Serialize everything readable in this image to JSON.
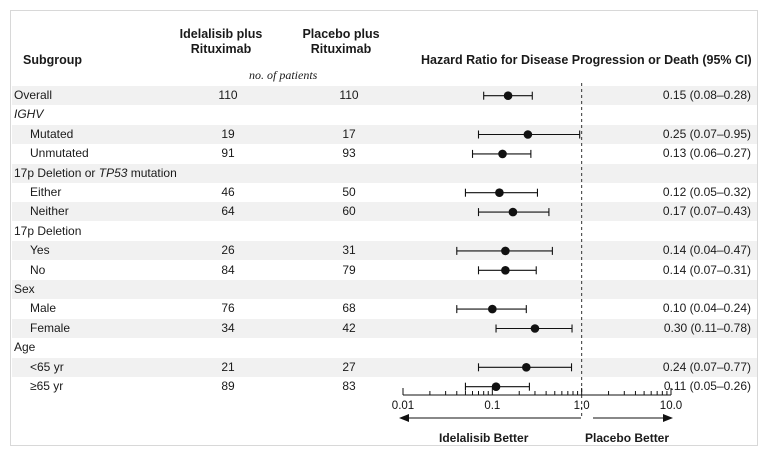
{
  "headers": {
    "subgroup": "Subgroup",
    "arm1_line1": "Idelalisib plus",
    "arm1_line2": "Rituximab",
    "arm2_line1": "Placebo plus",
    "arm2_line2": "Rituximab",
    "hr": "Hazard Ratio for Disease Progression or Death (95% CI)",
    "no_patients": "no. of patients"
  },
  "axis": {
    "ticks": [
      "0.01",
      "0.1",
      "1.0",
      "10.0"
    ],
    "left_label": "Idelalisib Better",
    "right_label": "Placebo Better"
  },
  "chart_data": {
    "type": "forest",
    "x_scale": "log",
    "xlim": [
      0.01,
      10.0
    ],
    "reference_line": 1.0,
    "rows": [
      {
        "label": "Overall",
        "kind": "data",
        "indent": false,
        "arm1": "110",
        "arm2": "110",
        "hr": 0.15,
        "lo": 0.08,
        "hi": 0.28,
        "ci_text": "0.15 (0.08–0.28)"
      },
      {
        "label": "IGHV",
        "kind": "group",
        "italic": true
      },
      {
        "label": "Mutated",
        "kind": "data",
        "indent": true,
        "arm1": "19",
        "arm2": "17",
        "hr": 0.25,
        "lo": 0.07,
        "hi": 0.95,
        "ci_text": "0.25 (0.07–0.95)"
      },
      {
        "label": "Unmutated",
        "kind": "data",
        "indent": true,
        "arm1": "91",
        "arm2": "93",
        "hr": 0.13,
        "lo": 0.06,
        "hi": 0.27,
        "ci_text": "0.13 (0.06–0.27)"
      },
      {
        "label": "17p Deletion or ",
        "label_it": "TP53",
        "label_tail": " mutation",
        "kind": "group"
      },
      {
        "label": "Either",
        "kind": "data",
        "indent": true,
        "arm1": "46",
        "arm2": "50",
        "hr": 0.12,
        "lo": 0.05,
        "hi": 0.32,
        "ci_text": "0.12 (0.05–0.32)"
      },
      {
        "label": "Neither",
        "kind": "data",
        "indent": true,
        "arm1": "64",
        "arm2": "60",
        "hr": 0.17,
        "lo": 0.07,
        "hi": 0.43,
        "ci_text": "0.17 (0.07–0.43)"
      },
      {
        "label": "17p Deletion",
        "kind": "group"
      },
      {
        "label": "Yes",
        "kind": "data",
        "indent": true,
        "arm1": "26",
        "arm2": "31",
        "hr": 0.14,
        "lo": 0.04,
        "hi": 0.47,
        "ci_text": "0.14 (0.04–0.47)"
      },
      {
        "label": "No",
        "kind": "data",
        "indent": true,
        "arm1": "84",
        "arm2": "79",
        "hr": 0.14,
        "lo": 0.07,
        "hi": 0.31,
        "ci_text": "0.14 (0.07–0.31)"
      },
      {
        "label": "Sex",
        "kind": "group"
      },
      {
        "label": "Male",
        "kind": "data",
        "indent": true,
        "arm1": "76",
        "arm2": "68",
        "hr": 0.1,
        "lo": 0.04,
        "hi": 0.24,
        "ci_text": "0.10 (0.04–0.24)"
      },
      {
        "label": "Female",
        "kind": "data",
        "indent": true,
        "arm1": "34",
        "arm2": "42",
        "hr": 0.3,
        "lo": 0.11,
        "hi": 0.78,
        "ci_text": "0.30 (0.11–0.78)"
      },
      {
        "label": "Age",
        "kind": "group"
      },
      {
        "label": "<65 yr",
        "kind": "data",
        "indent": true,
        "arm1": "21",
        "arm2": "27",
        "hr": 0.24,
        "lo": 0.07,
        "hi": 0.77,
        "ci_text": "0.24 (0.07–0.77)"
      },
      {
        "label": "≥65 yr",
        "kind": "data",
        "indent": true,
        "arm1": "89",
        "arm2": "83",
        "hr": 0.11,
        "lo": 0.05,
        "hi": 0.26,
        "ci_text": "0.11 (0.05–0.26)"
      }
    ]
  }
}
